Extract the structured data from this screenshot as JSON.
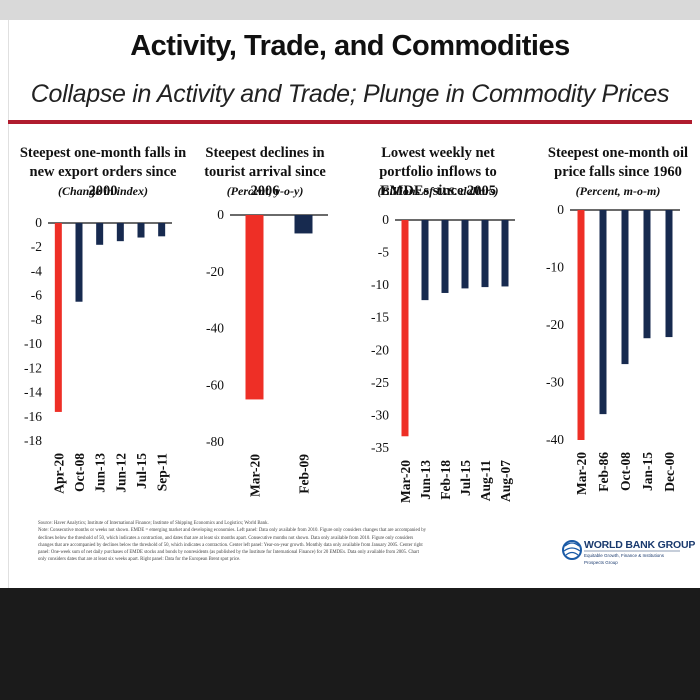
{
  "slide": {
    "title": "Activity, Trade, and Commodities",
    "subtitle": "Collapse in Activity and Trade; Plunge in Commodity Prices",
    "note_lines": [
      "Source: Haver Analytics; Institute of International Finance; Institute of Shipping Economics and Logistics; World Bank.",
      "Note: Consecutive months or weeks not shown. EMDE = emerging market and developing economies. Left panel: Data only available from 2010. Figure only considers changes that are accompanied by",
      "declines below the threshold of 50, which indicates a contraction, and dates that are at least six months apart. Consecutive months not shown. Data only available from 2010. Figure only considers",
      "changes that are accompanied by declines below the threshold of 50, which indicates a contraction. Center left panel: Year-on-year growth. Monthly data only available from January 2005. Center right",
      "panel: One-week sum of net daily purchases of EMDE stocks and bonds by nonresidents (as published by the Institute for International Finance) for 20 EMDEs. Data only available from 2005. Chart",
      "only considers dates that are at least six weeks apart. Right panel: Data for the European Brent spot price."
    ],
    "logo": {
      "name": "WORLD BANK GROUP",
      "tagline": "Equitable Growth, Finance & Institutions",
      "unit": "Prospects Group"
    },
    "colors": {
      "accent_red": "#b01c2e",
      "highlight_bar": "#ee2f26",
      "bar": "#172a4f"
    }
  },
  "chart_data": [
    {
      "type": "bar",
      "title": "Steepest one-month falls in new export orders since 2000",
      "unit": "(Change in index)",
      "categories": [
        "Apr-20",
        "Oct-08",
        "Jun-13",
        "Jun-12",
        "Jul-15",
        "Sep-11"
      ],
      "values": [
        -15.6,
        -6.5,
        -1.8,
        -1.5,
        -1.2,
        -1.1
      ],
      "highlight_index": 0,
      "ylim": [
        -18,
        0
      ],
      "yticks": [
        0,
        -2,
        -4,
        -6,
        -8,
        -10,
        -12,
        -14,
        -16,
        -18
      ]
    },
    {
      "type": "bar",
      "title": "Steepest declines in tourist arrival since 2006",
      "unit": "(Percent, y-o-y)",
      "categories": [
        "Mar-20",
        "Feb-09"
      ],
      "values": [
        -65,
        -6.5
      ],
      "highlight_index": 0,
      "ylim": [
        -80,
        0
      ],
      "yticks": [
        0,
        -20,
        -40,
        -60,
        -80
      ]
    },
    {
      "type": "bar",
      "title": "Lowest weekly net portfolio inflows to EMDEs since 2005",
      "unit": "(Billions of U.S. dollars)",
      "categories": [
        "Mar-20",
        "Jun-13",
        "Feb-18",
        "Jul-15",
        "Aug-11",
        "Aug-07"
      ],
      "values": [
        -33.2,
        -12.3,
        -11.2,
        -10.5,
        -10.3,
        -10.2
      ],
      "highlight_index": 0,
      "ylim": [
        -35,
        0
      ],
      "yticks": [
        0,
        -5,
        -10,
        -15,
        -20,
        -25,
        -30,
        -35
      ]
    },
    {
      "type": "bar",
      "title": "Steepest one-month oil price falls since 1960",
      "unit": "(Percent, m-o-m)",
      "categories": [
        "Mar-20",
        "Feb-86",
        "Oct-08",
        "Jan-15",
        "Dec-00"
      ],
      "values": [
        -40,
        -35.5,
        -26.8,
        -22.3,
        -22.1
      ],
      "highlight_index": 0,
      "ylim": [
        -40,
        0
      ],
      "yticks": [
        0,
        -10,
        -20,
        -30,
        -40
      ]
    }
  ]
}
